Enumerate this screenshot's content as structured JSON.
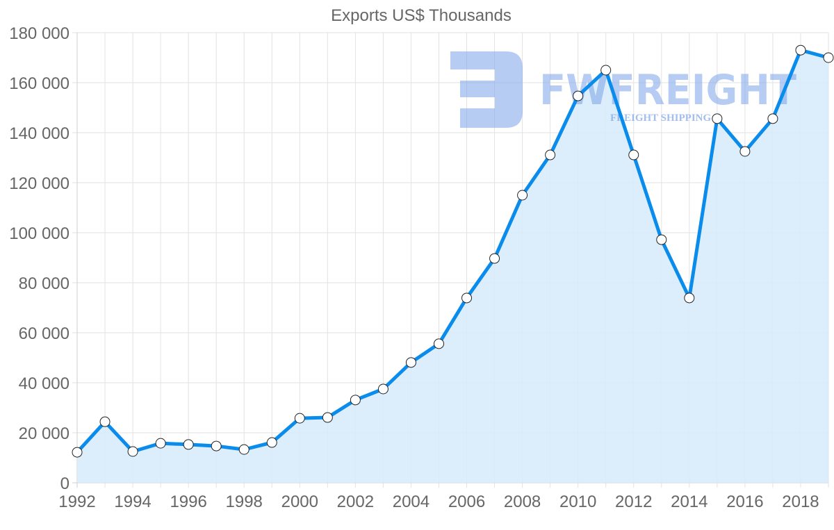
{
  "chart_data": {
    "type": "line",
    "title": "Exports US$ Thousands",
    "xlabel": "",
    "ylabel": "",
    "x": [
      1992,
      1993,
      1994,
      1995,
      1996,
      1997,
      1998,
      1999,
      2000,
      2001,
      2002,
      2003,
      2004,
      2005,
      2006,
      2007,
      2008,
      2009,
      2010,
      2011,
      2012,
      2013,
      2014,
      2015,
      2016,
      2017,
      2018,
      2019
    ],
    "series": [
      {
        "name": "Exports US$ Thousands",
        "values": [
          12200,
          24400,
          12500,
          15800,
          15300,
          14700,
          13300,
          16100,
          25800,
          26100,
          33100,
          37500,
          48100,
          55600,
          73900,
          89700,
          115000,
          131100,
          154700,
          165000,
          131100,
          97200,
          73900,
          145600,
          132500,
          145600,
          173000,
          170000
        ],
        "line_color": "#0a8ced",
        "fill_color": "#d8ebfb",
        "marker": "circle-white"
      }
    ],
    "ylim": [
      0,
      180000
    ],
    "xlim": [
      1992,
      2019
    ],
    "y_ticks": [
      "0",
      "20 000",
      "40 000",
      "60 000",
      "80 000",
      "100 000",
      "120 000",
      "140 000",
      "160 000",
      "180 000"
    ],
    "x_ticks": [
      "1992",
      "1994",
      "1996",
      "1998",
      "2000",
      "2002",
      "2004",
      "2006",
      "2008",
      "2010",
      "2012",
      "2014",
      "2016",
      "2018"
    ],
    "grid": true,
    "legend": "none",
    "fill_area": true
  },
  "watermark": {
    "brand": "FWFREIGHT",
    "tagline": "FREIGHT SHIPPING",
    "color": "#7ba3e8"
  }
}
